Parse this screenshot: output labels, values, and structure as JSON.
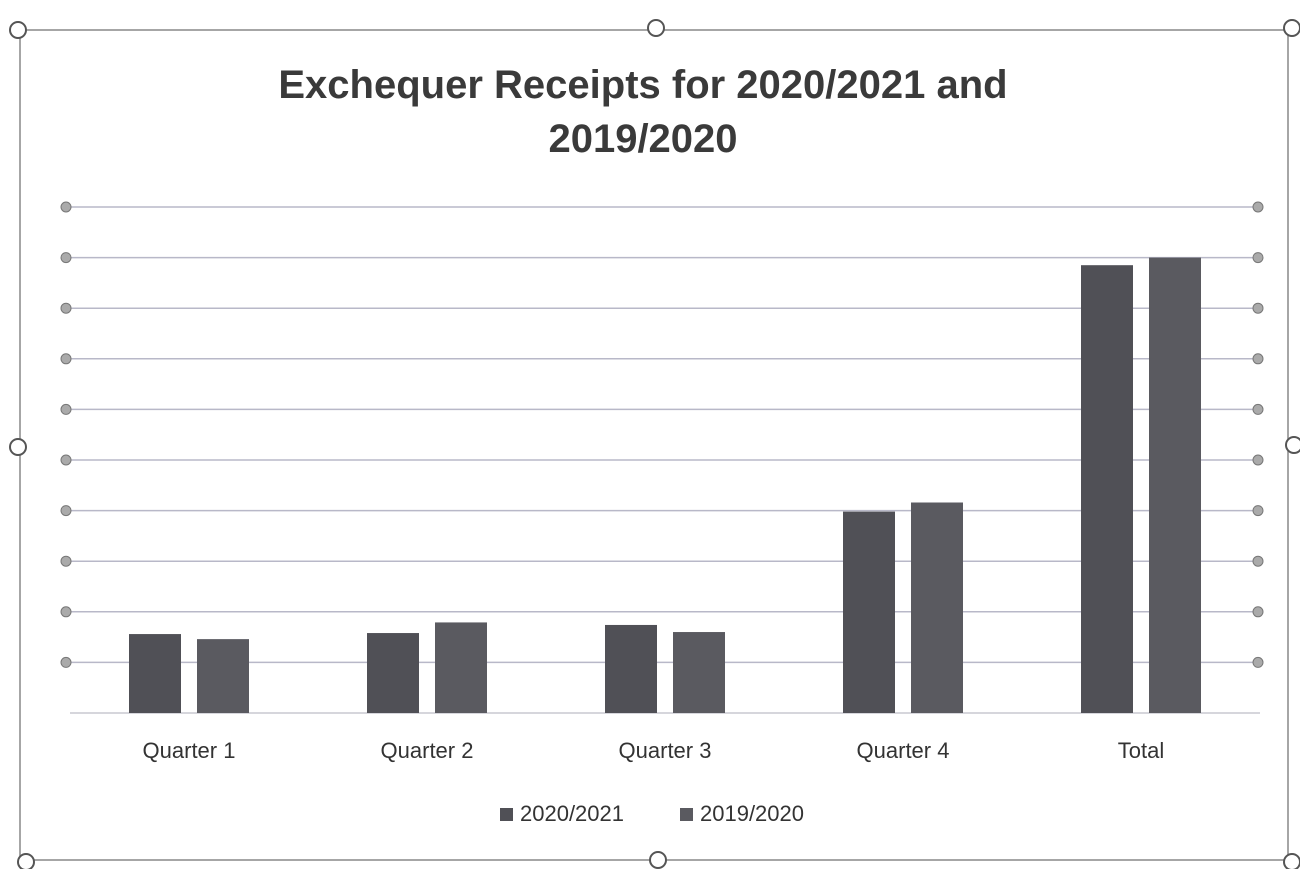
{
  "chart_data": {
    "type": "bar",
    "title": "Exchequer Receipts for 2020/2021 and 2019/2020",
    "categories": [
      "Quarter 1",
      "Quarter 2",
      "Quarter 3",
      "Quarter 4",
      "Total"
    ],
    "series": [
      {
        "name": "2020/2021",
        "color": "#505056",
        "values": [
          1.56,
          1.58,
          1.74,
          3.98,
          8.85
        ]
      },
      {
        "name": "2019/2020",
        "color": "#5a5a60",
        "values": [
          1.46,
          1.79,
          1.6,
          4.16,
          9.0
        ]
      }
    ],
    "ylim": [
      0,
      10
    ],
    "yticks": [
      1,
      2,
      3,
      4,
      5,
      6,
      7,
      8,
      9,
      10
    ],
    "grid": true,
    "legend": "bottom"
  }
}
